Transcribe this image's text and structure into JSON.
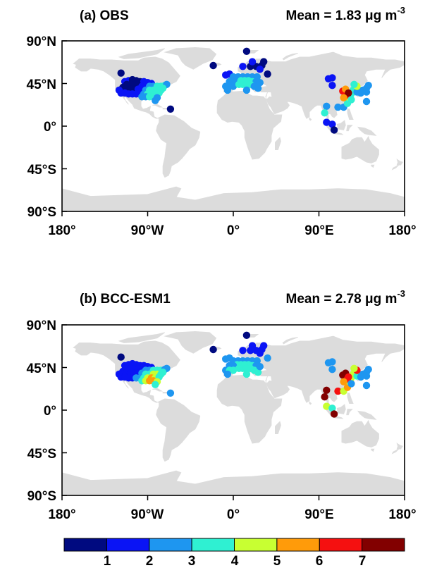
{
  "panels": [
    {
      "label": "(a) OBS",
      "mean_prefix": "Mean = ",
      "mean_value": "1.83",
      "mean_unit_mu": "μ",
      "mean_unit_rest": "g m",
      "mean_unit_exp": "-3",
      "lat_ticks": [
        "90°N",
        "45°N",
        "0°",
        "45°S",
        "90°S"
      ],
      "lon_ticks": [
        "180°",
        "90°W",
        "0°",
        "90°E",
        "180°"
      ],
      "stations": [
        [
          -118,
          56,
          0.5
        ],
        [
          -114,
          47,
          1.2
        ],
        [
          -110,
          48,
          1.0
        ],
        [
          -106,
          49,
          0.6
        ],
        [
          -102,
          48,
          0.5
        ],
        [
          -98,
          47,
          0.7
        ],
        [
          -94,
          47,
          1.1
        ],
        [
          -90,
          46,
          1.4
        ],
        [
          -86,
          45,
          1.8
        ],
        [
          -112,
          44,
          0.5
        ],
        [
          -108,
          44,
          0.4
        ],
        [
          -104,
          44,
          0.5
        ],
        [
          -100,
          43,
          0.8
        ],
        [
          -96,
          42,
          1.2
        ],
        [
          -92,
          42,
          1.7
        ],
        [
          -88,
          42,
          2.1
        ],
        [
          -84,
          42,
          2.6
        ],
        [
          -80,
          42,
          3.0
        ],
        [
          -76,
          42,
          3.2
        ],
        [
          -72,
          43,
          3.0
        ],
        [
          -70,
          44,
          2.6
        ],
        [
          -116,
          41,
          0.8
        ],
        [
          -112,
          40,
          0.6
        ],
        [
          -108,
          39,
          0.7
        ],
        [
          -104,
          39,
          0.9
        ],
        [
          -100,
          39,
          1.3
        ],
        [
          -96,
          39,
          1.9
        ],
        [
          -92,
          38,
          2.6
        ],
        [
          -88,
          38,
          3.1
        ],
        [
          -84,
          38,
          3.4
        ],
        [
          -80,
          38,
          3.6
        ],
        [
          -76,
          38,
          3.5
        ],
        [
          -74,
          40,
          3.4
        ],
        [
          -120,
          38,
          1.1
        ],
        [
          -118,
          35,
          1.3
        ],
        [
          -114,
          35,
          1.0
        ],
        [
          -110,
          34,
          1.1
        ],
        [
          -106,
          34,
          1.2
        ],
        [
          -102,
          34,
          1.4
        ],
        [
          -98,
          34,
          1.8
        ],
        [
          -94,
          34,
          2.4
        ],
        [
          -90,
          34,
          3.2
        ],
        [
          -86,
          34,
          3.5
        ],
        [
          -82,
          34,
          3.4
        ],
        [
          -78,
          35,
          3.1
        ],
        [
          -96,
          31,
          2.2
        ],
        [
          -92,
          31,
          2.7
        ],
        [
          -88,
          31,
          3.3
        ],
        [
          -84,
          31,
          3.1
        ],
        [
          -80,
          30,
          2.6
        ],
        [
          -82,
          27,
          2.2
        ],
        [
          -66,
          18,
          0.6
        ],
        [
          -21,
          64,
          0.6
        ],
        [
          14,
          79,
          0.5
        ],
        [
          10,
          63,
          1.0
        ],
        [
          18,
          63,
          0.8
        ],
        [
          24,
          63,
          0.6
        ],
        [
          30,
          64,
          0.9
        ],
        [
          32,
          68,
          0.8
        ],
        [
          20,
          68,
          1.0
        ],
        [
          28,
          60,
          1.1
        ],
        [
          36,
          55,
          0.7
        ],
        [
          -8,
          54,
          1.4
        ],
        [
          -4,
          55,
          1.7
        ],
        [
          0,
          52,
          2.0
        ],
        [
          5,
          52,
          2.3
        ],
        [
          10,
          52,
          2.5
        ],
        [
          15,
          52,
          2.7
        ],
        [
          20,
          52,
          2.4
        ],
        [
          25,
          52,
          2.1
        ],
        [
          4,
          48,
          2.8
        ],
        [
          8,
          48,
          3.0
        ],
        [
          12,
          48,
          3.2
        ],
        [
          16,
          48,
          3.4
        ],
        [
          20,
          47,
          3.2
        ],
        [
          24,
          47,
          2.7
        ],
        [
          -4,
          47,
          2.3
        ],
        [
          0,
          47,
          2.5
        ],
        [
          -8,
          42,
          2.3
        ],
        [
          -4,
          42,
          2.6
        ],
        [
          0,
          42,
          2.9
        ],
        [
          6,
          44,
          3.3
        ],
        [
          10,
          44,
          3.6
        ],
        [
          14,
          44,
          3.8
        ],
        [
          18,
          44,
          3.4
        ],
        [
          22,
          42,
          2.9
        ],
        [
          26,
          40,
          2.4
        ],
        [
          -6,
          38,
          2.1
        ],
        [
          14,
          38,
          2.6
        ],
        [
          28,
          46,
          2.0
        ],
        [
          100,
          50,
          1.1
        ],
        [
          104,
          51,
          1.0
        ],
        [
          104,
          43,
          1.6
        ],
        [
          98,
          21,
          2.4
        ],
        [
          96,
          14,
          3.1
        ],
        [
          98,
          4,
          1.4
        ],
        [
          104,
          2,
          1.8
        ],
        [
          106,
          -4,
          0.8
        ],
        [
          110,
          20,
          2.3
        ],
        [
          116,
          20,
          2.6
        ],
        [
          120,
          24,
          3.4
        ],
        [
          122,
          30,
          4.0
        ],
        [
          124,
          34,
          3.7
        ],
        [
          126,
          38,
          3.0
        ],
        [
          130,
          36,
          2.6
        ],
        [
          134,
          35,
          2.3
        ],
        [
          136,
          38,
          2.0
        ],
        [
          140,
          40,
          2.1
        ],
        [
          142,
          43,
          2.4
        ],
        [
          140,
          36,
          2.2
        ],
        [
          118,
          34,
          5.4
        ],
        [
          115,
          37,
          6.0
        ],
        [
          118,
          39,
          5.6
        ],
        [
          120,
          33,
          6.6
        ],
        [
          121,
          35,
          7.3
        ],
        [
          116,
          30,
          5.3
        ],
        [
          130,
          42,
          4.2
        ],
        [
          127,
          44,
          3.5
        ],
        [
          124,
          28,
          3.2
        ],
        [
          140,
          26,
          2.4
        ]
      ]
    },
    {
      "label": "(b) BCC-ESM1",
      "mean_prefix": "Mean = ",
      "mean_value": "2.78",
      "mean_unit_mu": "μ",
      "mean_unit_rest": "g m",
      "mean_unit_exp": "-3",
      "lat_ticks": [
        "90°N",
        "45°N",
        "0°",
        "45°S",
        "90°S"
      ],
      "lon_ticks": [
        "180°",
        "90°W",
        "0°",
        "90°E",
        "180°"
      ],
      "stations": [
        [
          -118,
          56,
          0.5
        ],
        [
          -114,
          47,
          1.4
        ],
        [
          -110,
          48,
          1.3
        ],
        [
          -106,
          49,
          1.1
        ],
        [
          -102,
          48,
          1.0
        ],
        [
          -98,
          47,
          1.0
        ],
        [
          -94,
          47,
          1.2
        ],
        [
          -90,
          46,
          1.4
        ],
        [
          -86,
          45,
          1.6
        ],
        [
          -112,
          44,
          1.2
        ],
        [
          -108,
          44,
          1.1
        ],
        [
          -104,
          44,
          1.1
        ],
        [
          -100,
          43,
          1.3
        ],
        [
          -96,
          42,
          1.7
        ],
        [
          -92,
          42,
          2.2
        ],
        [
          -88,
          42,
          2.7
        ],
        [
          -84,
          42,
          3.0
        ],
        [
          -80,
          42,
          3.3
        ],
        [
          -76,
          42,
          3.2
        ],
        [
          -72,
          43,
          2.9
        ],
        [
          -70,
          44,
          2.5
        ],
        [
          -116,
          41,
          1.3
        ],
        [
          -112,
          40,
          1.2
        ],
        [
          -108,
          39,
          1.3
        ],
        [
          -104,
          39,
          1.4
        ],
        [
          -100,
          39,
          1.8
        ],
        [
          -96,
          39,
          2.5
        ],
        [
          -92,
          38,
          3.3
        ],
        [
          -88,
          38,
          3.9
        ],
        [
          -84,
          38,
          4.3
        ],
        [
          -80,
          38,
          4.0
        ],
        [
          -76,
          38,
          3.7
        ],
        [
          -74,
          40,
          3.5
        ],
        [
          -120,
          38,
          1.4
        ],
        [
          -118,
          35,
          1.5
        ],
        [
          -114,
          35,
          1.4
        ],
        [
          -110,
          34,
          1.5
        ],
        [
          -106,
          34,
          1.7
        ],
        [
          -102,
          34,
          2.0
        ],
        [
          -98,
          34,
          2.6
        ],
        [
          -94,
          34,
          3.5
        ],
        [
          -90,
          34,
          4.6
        ],
        [
          -86,
          34,
          5.0
        ],
        [
          -82,
          34,
          4.5
        ],
        [
          -78,
          35,
          3.9
        ],
        [
          -96,
          31,
          3.7
        ],
        [
          -92,
          31,
          4.2
        ],
        [
          -88,
          31,
          5.2
        ],
        [
          -84,
          31,
          5.4
        ],
        [
          -80,
          30,
          4.2
        ],
        [
          -82,
          27,
          3.6
        ],
        [
          -66,
          18,
          2.5
        ],
        [
          -21,
          64,
          0.6
        ],
        [
          14,
          79,
          0.7
        ],
        [
          10,
          63,
          1.3
        ],
        [
          18,
          63,
          1.1
        ],
        [
          24,
          63,
          1.0
        ],
        [
          30,
          64,
          1.1
        ],
        [
          32,
          68,
          1.0
        ],
        [
          20,
          68,
          1.2
        ],
        [
          28,
          60,
          1.4
        ],
        [
          36,
          55,
          2.2
        ],
        [
          -8,
          54,
          2.0
        ],
        [
          -4,
          55,
          2.2
        ],
        [
          0,
          52,
          2.4
        ],
        [
          5,
          52,
          2.6
        ],
        [
          10,
          52,
          2.8
        ],
        [
          15,
          52,
          2.9
        ],
        [
          20,
          52,
          2.7
        ],
        [
          25,
          52,
          2.4
        ],
        [
          4,
          48,
          3.0
        ],
        [
          8,
          48,
          3.1
        ],
        [
          12,
          48,
          3.2
        ],
        [
          16,
          48,
          3.3
        ],
        [
          20,
          47,
          3.1
        ],
        [
          24,
          47,
          2.9
        ],
        [
          -4,
          47,
          2.6
        ],
        [
          0,
          47,
          2.8
        ],
        [
          -8,
          42,
          2.7
        ],
        [
          -4,
          42,
          3.0
        ],
        [
          0,
          42,
          3.2
        ],
        [
          6,
          44,
          3.4
        ],
        [
          10,
          44,
          3.6
        ],
        [
          14,
          44,
          3.7
        ],
        [
          18,
          44,
          3.5
        ],
        [
          22,
          42,
          3.2
        ],
        [
          26,
          40,
          3.0
        ],
        [
          -6,
          38,
          2.9
        ],
        [
          14,
          38,
          3.3
        ],
        [
          28,
          46,
          2.6
        ],
        [
          100,
          50,
          2.2
        ],
        [
          104,
          51,
          2.0
        ],
        [
          104,
          43,
          2.6
        ],
        [
          98,
          21,
          7.4
        ],
        [
          96,
          14,
          7.2
        ],
        [
          98,
          4,
          4.0
        ],
        [
          104,
          2,
          3.5
        ],
        [
          106,
          -4,
          7.5
        ],
        [
          110,
          20,
          6.6
        ],
        [
          116,
          20,
          4.6
        ],
        [
          120,
          24,
          5.2
        ],
        [
          122,
          30,
          4.6
        ],
        [
          124,
          34,
          4.9
        ],
        [
          126,
          38,
          4.6
        ],
        [
          130,
          36,
          3.4
        ],
        [
          134,
          35,
          2.9
        ],
        [
          136,
          38,
          2.6
        ],
        [
          140,
          40,
          2.7
        ],
        [
          142,
          43,
          2.9
        ],
        [
          140,
          36,
          2.6
        ],
        [
          118,
          34,
          7.6
        ],
        [
          115,
          37,
          7.8
        ],
        [
          118,
          39,
          7.3
        ],
        [
          120,
          33,
          6.8
        ],
        [
          121,
          35,
          6.4
        ],
        [
          116,
          30,
          5.6
        ],
        [
          130,
          42,
          6.0
        ],
        [
          127,
          44,
          4.5
        ],
        [
          124,
          28,
          2.7
        ],
        [
          140,
          26,
          2.0
        ]
      ]
    }
  ],
  "colorbar": {
    "labels": [
      "1",
      "2",
      "3",
      "4",
      "5",
      "6",
      "7"
    ],
    "colors": [
      "#000a80",
      "#0a14f5",
      "#1e96f0",
      "#2ff0d2",
      "#c8ff32",
      "#ff9b0a",
      "#f51010",
      "#820000"
    ]
  },
  "colors": {
    "land": "#dcdcdc",
    "ocean": "#ffffff",
    "frame": "#000000"
  }
}
